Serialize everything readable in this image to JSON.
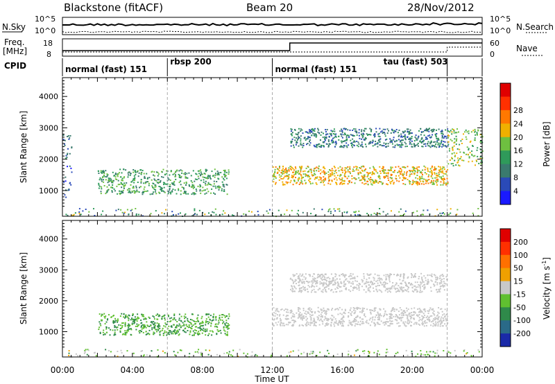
{
  "header": {
    "radar": "Blackstone (fitACF)",
    "beam": "Beam 20",
    "date": "28/Nov/2012"
  },
  "noise_panel": {
    "left_label": "N.Sky",
    "right_label": "N.Search",
    "ticks": [
      "10^5",
      "10^0"
    ]
  },
  "freq_panel": {
    "left_label_line1": "Freq.",
    "left_label_line2": "[MHz]",
    "right_label": "Nave",
    "left_ticks": [
      "18",
      "8"
    ],
    "right_ticks": [
      "60",
      "0"
    ]
  },
  "cpid": {
    "label": "CPID",
    "segments": [
      {
        "name": "normal (fast) 151",
        "start_hour": 0
      },
      {
        "name": "rbsp 200",
        "start_hour": 6
      },
      {
        "name": "normal (fast) 151",
        "start_hour": 12
      },
      {
        "name": "tau (fast) 503",
        "start_hour": 22
      }
    ],
    "boundaries_hours": [
      6,
      12,
      22
    ]
  },
  "chart_data": [
    {
      "type": "heatmap",
      "name": "power",
      "ylabel": "Slant Range [km]",
      "xlabel": "",
      "xlim": [
        0,
        24
      ],
      "ylim": [
        180,
        4600
      ],
      "yticks": [
        "1000",
        "2000",
        "3000",
        "4000"
      ],
      "colorbar_label": "Power [dB]",
      "colorbar_ticks": [
        "4",
        "8",
        "12",
        "16",
        "20",
        "24",
        "28"
      ],
      "colorbar_colors": [
        "#1a1aff",
        "#2a4ab8",
        "#3a7a6e",
        "#2f9a5a",
        "#6ec040",
        "#f0b000",
        "#ff7800",
        "#ff3000",
        "#e00000"
      ],
      "echo_bands": [
        {
          "hours": [
            0.0,
            0.5
          ],
          "range_km": [
            800,
            2800
          ],
          "level_db": 6
        },
        {
          "hours": [
            2.0,
            9.5
          ],
          "range_km": [
            900,
            1700
          ],
          "level_db": 12
        },
        {
          "hours": [
            12.0,
            22.0
          ],
          "range_km": [
            1200,
            1800
          ],
          "level_db": 20
        },
        {
          "hours": [
            13.0,
            22.0
          ],
          "range_km": [
            2400,
            3000
          ],
          "level_db": 8
        },
        {
          "hours": [
            22.0,
            24.0
          ],
          "range_km": [
            1800,
            3000
          ],
          "level_db": 16
        }
      ]
    },
    {
      "type": "heatmap",
      "name": "velocity",
      "ylabel": "Slant Range [km]",
      "xlabel": "Time UT",
      "xlim": [
        0,
        24
      ],
      "ylim": [
        180,
        4600
      ],
      "xticks": [
        "00:00",
        "04:00",
        "08:00",
        "12:00",
        "16:00",
        "20:00",
        "00:00"
      ],
      "yticks": [
        "1000",
        "2000",
        "3000",
        "4000"
      ],
      "colorbar_label": "Velocity [m s",
      "colorbar_label_sup": "-1",
      "colorbar_label_end": "]",
      "colorbar_ticks": [
        "200",
        "100",
        "50",
        "15",
        "-15",
        "-50",
        "-100",
        "-200"
      ],
      "colorbar_colors": [
        "#1a2aa8",
        "#2a6a88",
        "#2f8a4a",
        "#60c030",
        "#c8c8c8",
        "#f0a000",
        "#ff7000",
        "#ff3000",
        "#e00000"
      ],
      "echo_bands": [
        {
          "hours": [
            2.0,
            9.5
          ],
          "range_km": [
            900,
            1600
          ],
          "velocity": -50
        },
        {
          "hours": [
            12.0,
            22.0
          ],
          "range_km": [
            1200,
            1800
          ],
          "velocity": 0
        },
        {
          "hours": [
            13.0,
            22.0
          ],
          "range_km": [
            2300,
            2900
          ],
          "velocity": 0
        }
      ]
    }
  ]
}
